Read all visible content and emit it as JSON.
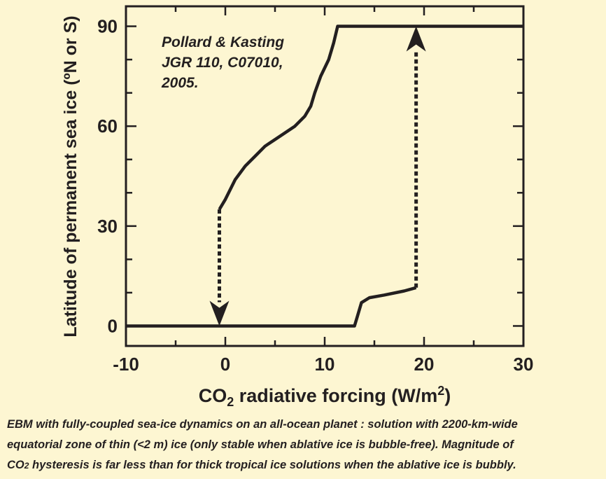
{
  "chart_data": {
    "type": "line",
    "xlabel_main": "CO",
    "xlabel_sub": "2",
    "xlabel_rest": " radiative forcing (W/m",
    "xlabel_sup": "2",
    "xlabel_end": ")",
    "ylabel": "Latitude of permanent sea ice (ºN or S)",
    "xlim": [
      -10,
      30
    ],
    "ylim": [
      -6,
      96
    ],
    "xticks": [
      -10,
      0,
      10,
      20,
      30
    ],
    "yticks": [
      0,
      30,
      60,
      90
    ],
    "annotation": [
      "Pollard & Kasting",
      "JGR 110, C07010,",
      "2005."
    ],
    "grid": false,
    "series": [
      {
        "values": [
          [
            -10,
            0
          ],
          [
            13.0,
            0
          ],
          [
            13.3,
            3
          ],
          [
            13.7,
            7
          ],
          [
            14.5,
            8.5
          ],
          [
            16,
            9.3
          ],
          [
            18,
            10.5
          ],
          [
            19.2,
            11.5
          ]
        ]
      },
      {
        "values": [
          [
            -0.6,
            35
          ],
          [
            0,
            38
          ],
          [
            1,
            44
          ],
          [
            2,
            48
          ],
          [
            3,
            51
          ],
          [
            4,
            54
          ],
          [
            5,
            56
          ],
          [
            6,
            58
          ],
          [
            7,
            60
          ],
          [
            8,
            63
          ],
          [
            8.6,
            66
          ],
          [
            9,
            70
          ],
          [
            9.6,
            75
          ],
          [
            10.4,
            80
          ],
          [
            10.9,
            85
          ],
          [
            11.3,
            90
          ],
          [
            30,
            90
          ]
        ]
      }
    ],
    "arrows": [
      {
        "direction": "down",
        "x": -0.6,
        "from": 35,
        "to": 0
      },
      {
        "direction": "up",
        "x": 19.2,
        "from": 11.5,
        "to": 90
      }
    ]
  },
  "caption": {
    "line1": "EBM with fully-coupled sea-ice dynamics on an all-ocean planet : solution with 2200-km-wide",
    "line2": "equatorial zone of thin (<2 m) ice (only stable when ablative ice is bubble-free). Magnitude of",
    "line3_co": "CO",
    "line3_sub": "2",
    "line3_rest": "  hysteresis is far less than for thick tropical ice solutions when the ablative ice is bubbly."
  }
}
